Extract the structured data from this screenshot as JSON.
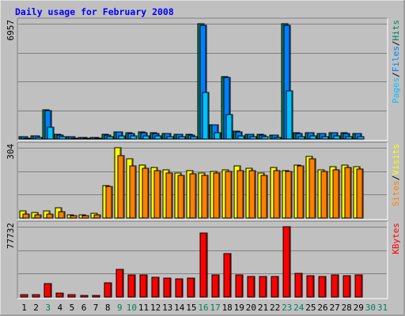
{
  "chart_data": {
    "type": "bar",
    "title": "Daily usage for February 2008",
    "categories": [
      "1",
      "2",
      "3",
      "4",
      "5",
      "6",
      "7",
      "8",
      "9",
      "10",
      "11",
      "12",
      "13",
      "14",
      "15",
      "16",
      "17",
      "18",
      "19",
      "20",
      "21",
      "22",
      "23",
      "24",
      "25",
      "26",
      "27",
      "28",
      "29",
      "30",
      "31"
    ],
    "weekend_days": [
      "3",
      "9",
      "10",
      "16",
      "17",
      "23",
      "24",
      "30",
      "31"
    ],
    "panels": [
      {
        "id": "pages_files_hits",
        "max_label": "6957",
        "ymax": 6957,
        "legend": [
          "Pages",
          "/",
          "Files",
          "/",
          "Hits"
        ],
        "series": [
          {
            "name": "Hits",
            "color": "#00805c",
            "values": [
              150,
              200,
              1780,
              280,
              150,
              100,
              100,
              280,
              450,
              380,
              420,
              380,
              330,
              300,
              280,
              6950,
              880,
              3780,
              480,
              300,
              280,
              250,
              6957,
              360,
              380,
              340,
              380,
              360,
              330,
              0,
              0
            ]
          },
          {
            "name": "Files",
            "color": "#0080ff",
            "values": [
              130,
              180,
              1720,
              250,
              130,
              80,
              80,
              260,
              420,
              350,
              400,
              350,
              310,
              280,
              260,
              6850,
              850,
              3700,
              450,
              280,
              260,
              230,
              6880,
              340,
              360,
              320,
              360,
              340,
              310,
              0,
              0
            ]
          },
          {
            "name": "Pages",
            "color": "#00c0ff",
            "values": [
              60,
              80,
              700,
              120,
              60,
              40,
              40,
              120,
              200,
              180,
              200,
              180,
              160,
              140,
              130,
              2800,
              400,
              1500,
              200,
              130,
              120,
              110,
              2900,
              160,
              170,
              150,
              170,
              160,
              150,
              0,
              0
            ]
          }
        ]
      },
      {
        "id": "visits_sites",
        "max_label": "304",
        "ymax": 304,
        "legend": [
          "Sites",
          "/",
          "Visits"
        ],
        "series": [
          {
            "name": "Visits",
            "color": "#ffff00",
            "values": [
              30,
              25,
              30,
              45,
              15,
              12,
              20,
              140,
              304,
              255,
              230,
              220,
              210,
              195,
              205,
              195,
              200,
              210,
              225,
              215,
              195,
              220,
              205,
              230,
              265,
              210,
              222,
              230,
              222,
              0,
              0
            ]
          },
          {
            "name": "Sites",
            "color": "#ff8000",
            "values": [
              18,
              14,
              16,
              28,
              10,
              9,
              12,
              135,
              270,
              225,
              215,
              205,
              195,
              185,
              190,
              185,
              195,
              200,
              205,
              205,
              185,
              205,
              200,
              225,
              255,
              200,
              210,
              218,
              212,
              0,
              0
            ]
          }
        ]
      },
      {
        "id": "kbytes",
        "max_label": "77732",
        "ymax": 77732,
        "legend": [
          "KBytes"
        ],
        "series": [
          {
            "name": "KBytes",
            "color": "#ff0000",
            "values": [
              2400,
              2600,
              14500,
              4300,
              2200,
              1900,
              1700,
              15800,
              31000,
              24800,
              24500,
              21600,
              20600,
              20500,
              20800,
              71000,
              24100,
              48300,
              24400,
              22600,
              22700,
              22400,
              77732,
              26600,
              23200,
              22700,
              24500,
              24000,
              24800,
              0,
              0
            ]
          }
        ]
      }
    ]
  },
  "colors": {
    "background": "#c0c0c0",
    "title": "#0000ff",
    "weekday_label": "#000000",
    "weekend_label": "#00805c",
    "legend_pages": "#00c0ff",
    "legend_files": "#0080ff",
    "legend_hits": "#00805c",
    "legend_sites": "#ff8000",
    "legend_visits": "#ffff00",
    "legend_kbytes": "#ff0000"
  }
}
